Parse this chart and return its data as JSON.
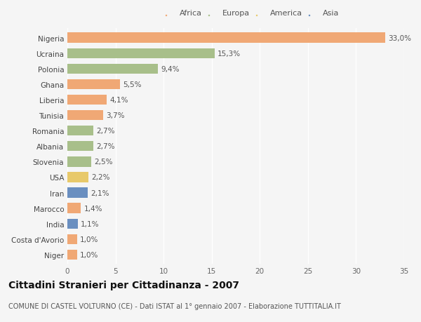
{
  "categories": [
    "Nigeria",
    "Ucraina",
    "Polonia",
    "Ghana",
    "Liberia",
    "Tunisia",
    "Romania",
    "Albania",
    "Slovenia",
    "USA",
    "Iran",
    "Marocco",
    "India",
    "Costa d'Avorio",
    "Niger"
  ],
  "values": [
    33.0,
    15.3,
    9.4,
    5.5,
    4.1,
    3.7,
    2.7,
    2.7,
    2.5,
    2.2,
    2.1,
    1.4,
    1.1,
    1.0,
    1.0
  ],
  "labels": [
    "33,0%",
    "15,3%",
    "9,4%",
    "5,5%",
    "4,1%",
    "3,7%",
    "2,7%",
    "2,7%",
    "2,5%",
    "2,2%",
    "2,1%",
    "1,4%",
    "1,1%",
    "1,0%",
    "1,0%"
  ],
  "colors": [
    "#f0a875",
    "#a8bf8a",
    "#a8bf8a",
    "#f0a875",
    "#f0a875",
    "#f0a875",
    "#a8bf8a",
    "#a8bf8a",
    "#a8bf8a",
    "#e8c96a",
    "#6a8fc0",
    "#f0a875",
    "#6a8fc0",
    "#f0a875",
    "#f0a875"
  ],
  "legend_labels": [
    "Africa",
    "Europa",
    "America",
    "Asia"
  ],
  "legend_colors": [
    "#f0a875",
    "#a8bf8a",
    "#e8c96a",
    "#6a8fc0"
  ],
  "title": "Cittadini Stranieri per Cittadinanza - 2007",
  "subtitle": "COMUNE DI CASTEL VOLTURNO (CE) - Dati ISTAT al 1° gennaio 2007 - Elaborazione TUTTITALIA.IT",
  "xlim": [
    0,
    35
  ],
  "xticks": [
    0,
    5,
    10,
    15,
    20,
    25,
    30,
    35
  ],
  "background_color": "#f5f5f5",
  "bar_height": 0.65,
  "grid_color": "#ffffff",
  "label_fontsize": 7.5,
  "tick_fontsize": 7.5,
  "title_fontsize": 10,
  "subtitle_fontsize": 7.0
}
